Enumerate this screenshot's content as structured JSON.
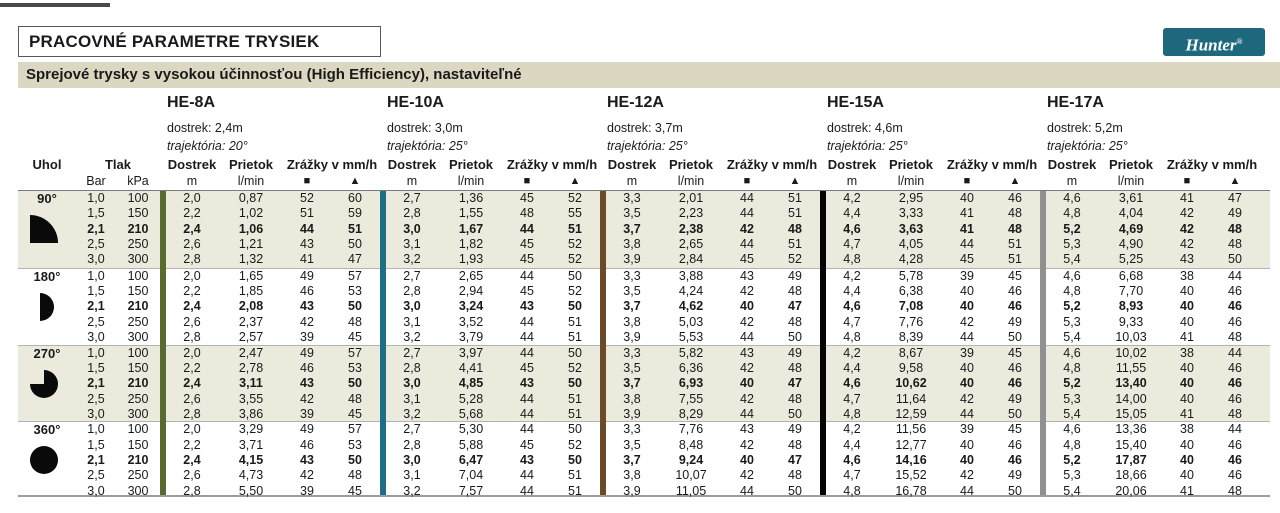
{
  "page": {
    "title": "PRACOVNÉ PARAMETRE TRYSIEK",
    "subtitle": "Sprejové trysky s vysokou účinnosťou (High Efficiency), nastaviteľné",
    "brand": {
      "name": "Hunter",
      "reg": "®"
    }
  },
  "colors": {
    "brand_bg": "#1E687E",
    "subtitle_bg": "#DBD7C1",
    "band_bg": "#ECEADD",
    "icon_black": "#0a0a0a"
  },
  "table": {
    "headers": {
      "angle": "Uhol",
      "pressure": "Tlak",
      "pressure_units": [
        "Bar",
        "kPa"
      ],
      "range": "Dostrek",
      "range_unit": "m",
      "flow": "Prietok",
      "flow_unit": "l/min",
      "precip": "Zrážky v mm/h",
      "precip_symbols": [
        "■",
        "▲"
      ]
    },
    "nozzles": [
      {
        "name": "HE-8A",
        "range": "dostrek: 2,4m",
        "trajectory": "trajektória: 20°",
        "bar_color": "#566B2D"
      },
      {
        "name": "HE-10A",
        "range": "dostrek: 3,0m",
        "trajectory": "trajektória: 25°",
        "bar_color": "#1D7083"
      },
      {
        "name": "HE-12A",
        "range": "dostrek: 3,7m",
        "trajectory": "trajektória: 25°",
        "bar_color": "#6B4B27"
      },
      {
        "name": "HE-15A",
        "range": "dostrek: 4,6m",
        "trajectory": "trajektória: 25°",
        "bar_color": "#050505"
      },
      {
        "name": "HE-17A",
        "range": "dostrek: 5,2m",
        "trajectory": "trajektória: 25°",
        "bar_color": "#909090"
      }
    ],
    "groups": [
      {
        "angle": "90°",
        "icon": "quarter-circle",
        "shaded": true,
        "rows": [
          {
            "p": [
              "1,0",
              "100"
            ],
            "bold": false,
            "v": [
              [
                "2,0",
                "0,87",
                "52",
                "60"
              ],
              [
                "2,7",
                "1,36",
                "45",
                "52"
              ],
              [
                "3,3",
                "2,01",
                "44",
                "51"
              ],
              [
                "4,2",
                "2,95",
                "40",
                "46"
              ],
              [
                "4,6",
                "3,61",
                "41",
                "47"
              ]
            ]
          },
          {
            "p": [
              "1,5",
              "150"
            ],
            "bold": false,
            "v": [
              [
                "2,2",
                "1,02",
                "51",
                "59"
              ],
              [
                "2,8",
                "1,55",
                "48",
                "55"
              ],
              [
                "3,5",
                "2,23",
                "44",
                "51"
              ],
              [
                "4,4",
                "3,33",
                "41",
                "48"
              ],
              [
                "4,8",
                "4,04",
                "42",
                "49"
              ]
            ]
          },
          {
            "p": [
              "2,1",
              "210"
            ],
            "bold": true,
            "v": [
              [
                "2,4",
                "1,06",
                "44",
                "51"
              ],
              [
                "3,0",
                "1,67",
                "44",
                "51"
              ],
              [
                "3,7",
                "2,38",
                "42",
                "48"
              ],
              [
                "4,6",
                "3,63",
                "41",
                "48"
              ],
              [
                "5,2",
                "4,69",
                "42",
                "48"
              ]
            ]
          },
          {
            "p": [
              "2,5",
              "250"
            ],
            "bold": false,
            "v": [
              [
                "2,6",
                "1,21",
                "43",
                "50"
              ],
              [
                "3,1",
                "1,82",
                "45",
                "52"
              ],
              [
                "3,8",
                "2,65",
                "44",
                "51"
              ],
              [
                "4,7",
                "4,05",
                "44",
                "51"
              ],
              [
                "5,3",
                "4,90",
                "42",
                "48"
              ]
            ]
          },
          {
            "p": [
              "3,0",
              "300"
            ],
            "bold": false,
            "v": [
              [
                "2,8",
                "1,32",
                "41",
                "47"
              ],
              [
                "3,2",
                "1,93",
                "45",
                "52"
              ],
              [
                "3,9",
                "2,84",
                "45",
                "52"
              ],
              [
                "4,8",
                "4,28",
                "45",
                "51"
              ],
              [
                "5,4",
                "5,25",
                "43",
                "50"
              ]
            ]
          }
        ]
      },
      {
        "angle": "180°",
        "icon": "half-circle",
        "shaded": false,
        "rows": [
          {
            "p": [
              "1,0",
              "100"
            ],
            "bold": false,
            "v": [
              [
                "2,0",
                "1,65",
                "49",
                "57"
              ],
              [
                "2,7",
                "2,65",
                "44",
                "50"
              ],
              [
                "3,3",
                "3,88",
                "43",
                "49"
              ],
              [
                "4,2",
                "5,78",
                "39",
                "45"
              ],
              [
                "4,6",
                "6,68",
                "38",
                "44"
              ]
            ]
          },
          {
            "p": [
              "1,5",
              "150"
            ],
            "bold": false,
            "v": [
              [
                "2,2",
                "1,85",
                "46",
                "53"
              ],
              [
                "2,8",
                "2,94",
                "45",
                "52"
              ],
              [
                "3,5",
                "4,24",
                "42",
                "48"
              ],
              [
                "4,4",
                "6,38",
                "40",
                "46"
              ],
              [
                "4,8",
                "7,70",
                "40",
                "46"
              ]
            ]
          },
          {
            "p": [
              "2,1",
              "210"
            ],
            "bold": true,
            "v": [
              [
                "2,4",
                "2,08",
                "43",
                "50"
              ],
              [
                "3,0",
                "3,24",
                "43",
                "50"
              ],
              [
                "3,7",
                "4,62",
                "40",
                "47"
              ],
              [
                "4,6",
                "7,08",
                "40",
                "46"
              ],
              [
                "5,2",
                "8,93",
                "40",
                "46"
              ]
            ]
          },
          {
            "p": [
              "2,5",
              "250"
            ],
            "bold": false,
            "v": [
              [
                "2,6",
                "2,37",
                "42",
                "48"
              ],
              [
                "3,1",
                "3,52",
                "44",
                "51"
              ],
              [
                "3,8",
                "5,03",
                "42",
                "48"
              ],
              [
                "4,7",
                "7,76",
                "42",
                "49"
              ],
              [
                "5,3",
                "9,33",
                "40",
                "46"
              ]
            ]
          },
          {
            "p": [
              "3,0",
              "300"
            ],
            "bold": false,
            "v": [
              [
                "2,8",
                "2,57",
                "39",
                "45"
              ],
              [
                "3,2",
                "3,79",
                "44",
                "51"
              ],
              [
                "3,9",
                "5,53",
                "44",
                "50"
              ],
              [
                "4,8",
                "8,39",
                "44",
                "50"
              ],
              [
                "5,4",
                "10,03",
                "41",
                "48"
              ]
            ]
          }
        ]
      },
      {
        "angle": "270°",
        "icon": "three-quarter-circle",
        "shaded": true,
        "rows": [
          {
            "p": [
              "1,0",
              "100"
            ],
            "bold": false,
            "v": [
              [
                "2,0",
                "2,47",
                "49",
                "57"
              ],
              [
                "2,7",
                "3,97",
                "44",
                "50"
              ],
              [
                "3,3",
                "5,82",
                "43",
                "49"
              ],
              [
                "4,2",
                "8,67",
                "39",
                "45"
              ],
              [
                "4,6",
                "10,02",
                "38",
                "44"
              ]
            ]
          },
          {
            "p": [
              "1,5",
              "150"
            ],
            "bold": false,
            "v": [
              [
                "2,2",
                "2,78",
                "46",
                "53"
              ],
              [
                "2,8",
                "4,41",
                "45",
                "52"
              ],
              [
                "3,5",
                "6,36",
                "42",
                "48"
              ],
              [
                "4,4",
                "9,58",
                "40",
                "46"
              ],
              [
                "4,8",
                "11,55",
                "40",
                "46"
              ]
            ]
          },
          {
            "p": [
              "2,1",
              "210"
            ],
            "bold": true,
            "v": [
              [
                "2,4",
                "3,11",
                "43",
                "50"
              ],
              [
                "3,0",
                "4,85",
                "43",
                "50"
              ],
              [
                "3,7",
                "6,93",
                "40",
                "47"
              ],
              [
                "4,6",
                "10,62",
                "40",
                "46"
              ],
              [
                "5,2",
                "13,40",
                "40",
                "46"
              ]
            ]
          },
          {
            "p": [
              "2,5",
              "250"
            ],
            "bold": false,
            "v": [
              [
                "2,6",
                "3,55",
                "42",
                "48"
              ],
              [
                "3,1",
                "5,28",
                "44",
                "51"
              ],
              [
                "3,8",
                "7,55",
                "42",
                "48"
              ],
              [
                "4,7",
                "11,64",
                "42",
                "49"
              ],
              [
                "5,3",
                "14,00",
                "40",
                "46"
              ]
            ]
          },
          {
            "p": [
              "3,0",
              "300"
            ],
            "bold": false,
            "v": [
              [
                "2,8",
                "3,86",
                "39",
                "45"
              ],
              [
                "3,2",
                "5,68",
                "44",
                "51"
              ],
              [
                "3,9",
                "8,29",
                "44",
                "50"
              ],
              [
                "4,8",
                "12,59",
                "44",
                "50"
              ],
              [
                "5,4",
                "15,05",
                "41",
                "48"
              ]
            ]
          }
        ]
      },
      {
        "angle": "360°",
        "icon": "full-circle",
        "shaded": false,
        "rows": [
          {
            "p": [
              "1,0",
              "100"
            ],
            "bold": false,
            "v": [
              [
                "2,0",
                "3,29",
                "49",
                "57"
              ],
              [
                "2,7",
                "5,30",
                "44",
                "50"
              ],
              [
                "3,3",
                "7,76",
                "43",
                "49"
              ],
              [
                "4,2",
                "11,56",
                "39",
                "45"
              ],
              [
                "4,6",
                "13,36",
                "38",
                "44"
              ]
            ]
          },
          {
            "p": [
              "1,5",
              "150"
            ],
            "bold": false,
            "v": [
              [
                "2,2",
                "3,71",
                "46",
                "53"
              ],
              [
                "2,8",
                "5,88",
                "45",
                "52"
              ],
              [
                "3,5",
                "8,48",
                "42",
                "48"
              ],
              [
                "4,4",
                "12,77",
                "40",
                "46"
              ],
              [
                "4,8",
                "15,40",
                "40",
                "46"
              ]
            ]
          },
          {
            "p": [
              "2,1",
              "210"
            ],
            "bold": true,
            "v": [
              [
                "2,4",
                "4,15",
                "43",
                "50"
              ],
              [
                "3,0",
                "6,47",
                "43",
                "50"
              ],
              [
                "3,7",
                "9,24",
                "40",
                "47"
              ],
              [
                "4,6",
                "14,16",
                "40",
                "46"
              ],
              [
                "5,2",
                "17,87",
                "40",
                "46"
              ]
            ]
          },
          {
            "p": [
              "2,5",
              "250"
            ],
            "bold": false,
            "v": [
              [
                "2,6",
                "4,73",
                "42",
                "48"
              ],
              [
                "3,1",
                "7,04",
                "44",
                "51"
              ],
              [
                "3,8",
                "10,07",
                "42",
                "48"
              ],
              [
                "4,7",
                "15,52",
                "42",
                "49"
              ],
              [
                "5,3",
                "18,66",
                "40",
                "46"
              ]
            ]
          },
          {
            "p": [
              "3,0",
              "300"
            ],
            "bold": false,
            "v": [
              [
                "2,8",
                "5,50",
                "39",
                "45"
              ],
              [
                "3,2",
                "7,57",
                "44",
                "51"
              ],
              [
                "3,9",
                "11,05",
                "44",
                "50"
              ],
              [
                "4,8",
                "16,78",
                "44",
                "50"
              ],
              [
                "5,4",
                "20,06",
                "41",
                "48"
              ]
            ]
          }
        ]
      }
    ]
  }
}
